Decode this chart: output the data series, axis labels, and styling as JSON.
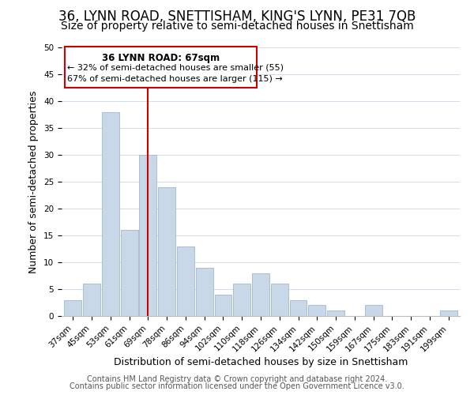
{
  "title": "36, LYNN ROAD, SNETTISHAM, KING'S LYNN, PE31 7QB",
  "subtitle": "Size of property relative to semi-detached houses in Snettisham",
  "xlabel": "Distribution of semi-detached houses by size in Snettisham",
  "ylabel": "Number of semi-detached properties",
  "bar_labels": [
    "37sqm",
    "45sqm",
    "53sqm",
    "61sqm",
    "69sqm",
    "78sqm",
    "86sqm",
    "94sqm",
    "102sqm",
    "110sqm",
    "118sqm",
    "126sqm",
    "134sqm",
    "142sqm",
    "150sqm",
    "159sqm",
    "167sqm",
    "175sqm",
    "183sqm",
    "191sqm",
    "199sqm"
  ],
  "bar_values": [
    3,
    6,
    38,
    16,
    30,
    24,
    13,
    9,
    4,
    6,
    8,
    6,
    3,
    2,
    1,
    0,
    2,
    0,
    0,
    0,
    1
  ],
  "bar_color": "#c8d8e8",
  "bar_edge_color": "#a0b8cc",
  "vline_x": 4,
  "vline_color": "#cc0000",
  "ylim": [
    0,
    50
  ],
  "yticks": [
    0,
    5,
    10,
    15,
    20,
    25,
    30,
    35,
    40,
    45,
    50
  ],
  "annotation_title": "36 LYNN ROAD: 67sqm",
  "annotation_line1": "← 32% of semi-detached houses are smaller (55)",
  "annotation_line2": "67% of semi-detached houses are larger (115) →",
  "footer1": "Contains HM Land Registry data © Crown copyright and database right 2024.",
  "footer2": "Contains public sector information licensed under the Open Government Licence v3.0.",
  "bg_color": "#ffffff",
  "grid_color": "#d0dce8",
  "title_fontsize": 12,
  "subtitle_fontsize": 10,
  "label_fontsize": 9,
  "tick_fontsize": 7.5,
  "footer_fontsize": 7
}
